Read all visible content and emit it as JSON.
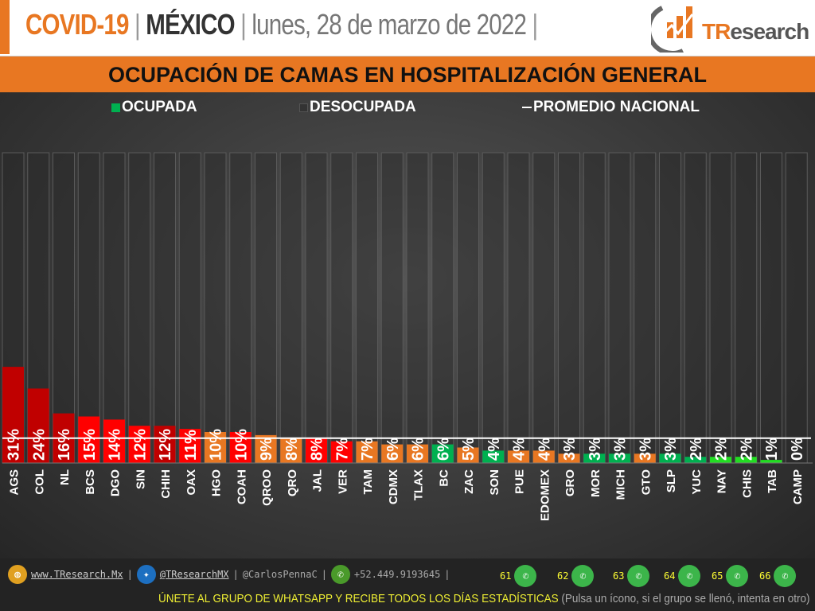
{
  "header": {
    "covid": "COVID-19",
    "sep": "|",
    "country": "MÉXICO",
    "date": "lunes, 28 de marzo de 2022",
    "logo_t": "TR",
    "logo_rest": "esearch",
    "brand_color": "#e87722"
  },
  "banner": {
    "title": "OCUPACIÓN DE CAMAS EN HOSPITALIZACIÓN GENERAL"
  },
  "chart_data": {
    "type": "bar",
    "title": "OCUPACIÓN DE CAMAS EN HOSPITALIZACIÓN GENERAL",
    "legend": [
      "OCUPADA",
      "DESOCUPADA",
      "PROMEDIO NACIONAL"
    ],
    "legend_placement": "top",
    "categories": [
      "AGS",
      "COL",
      "NL",
      "BCS",
      "DGO",
      "SIN",
      "CHIH",
      "OAX",
      "HGO",
      "COAH",
      "QROO",
      "QRO",
      "JAL",
      "VER",
      "TAM",
      "CDMX",
      "TLAX",
      "BC",
      "ZAC",
      "SON",
      "PUE",
      "EDOMEX",
      "GRO",
      "MOR",
      "MICH",
      "GTO",
      "SLP",
      "YUC",
      "NAY",
      "CHIS",
      "TAB",
      "CAMP"
    ],
    "values": [
      31,
      24,
      16,
      15,
      14,
      12,
      12,
      11,
      10,
      10,
      9,
      8,
      8,
      7,
      7,
      6,
      6,
      6,
      5,
      4,
      4,
      4,
      3,
      3,
      3,
      3,
      3,
      2,
      2,
      2,
      1,
      0
    ],
    "labels": [
      "31%",
      "24%",
      "16%",
      "15%",
      "14%",
      "12%",
      "12%",
      "11%",
      "10%",
      "10%",
      "9%",
      "8%",
      "8%",
      "7%",
      "7%",
      "6%",
      "6%",
      "6%",
      "5%",
      "4%",
      "4%",
      "4%",
      "3%",
      "3%",
      "3%",
      "3%",
      "3%",
      "2%",
      "2%",
      "2%",
      "1%",
      "0%"
    ],
    "colors": [
      "#c00000",
      "#c00000",
      "#c00000",
      "#ff0000",
      "#ff0000",
      "#ff0000",
      "#c00000",
      "#ff0000",
      "#e87722",
      "#ff0000",
      "#e87722",
      "#e87722",
      "#ff0000",
      "#ff0000",
      "#e87722",
      "#e87722",
      "#e87722",
      "#00b050",
      "#e87722",
      "#00b050",
      "#e87722",
      "#e87722",
      "#e87722",
      "#00b050",
      "#00b050",
      "#e87722",
      "#00b050",
      "#00b050",
      "#22dd22",
      "#22dd22",
      "#22dd22",
      "#22dd22"
    ],
    "national_average": 8,
    "ylim": [
      0,
      100
    ],
    "legend_colors": {
      "occupied": "#00b050",
      "unoccupied": "#333333",
      "average": "#ffffff"
    }
  },
  "footer": {
    "web": "www.TResearch.Mx",
    "twitter": "@TResearchMX",
    "handle": "@CarlosPennaC",
    "phone": "+52.449.9193645",
    "groups": [
      "61",
      "62",
      "63",
      "64",
      "65",
      "66"
    ],
    "cta": "ÚNETE AL GRUPO DE WHATSAPP Y RECIBE TODOS LOS DÍAS ESTADÍSTICAS",
    "note": "(Pulsa un ícono, si el grupo se llenó, intenta en otro)"
  }
}
